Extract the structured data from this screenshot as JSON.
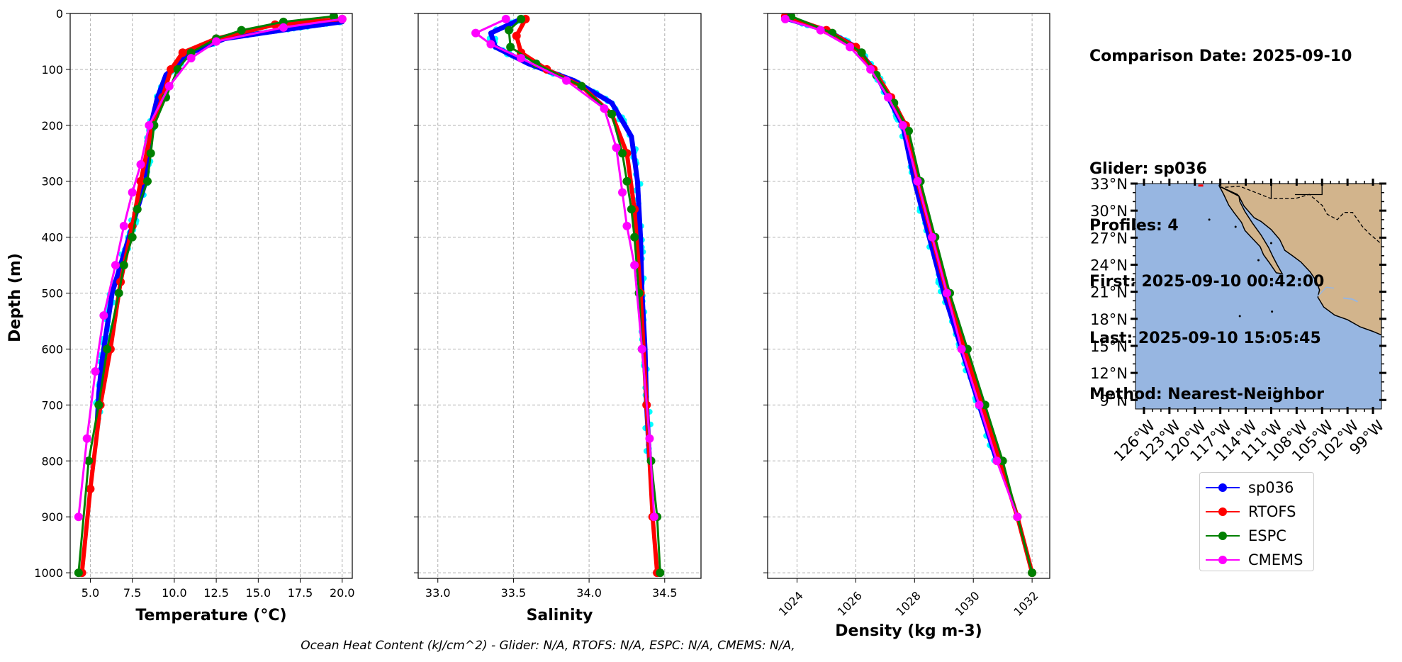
{
  "colors": {
    "sp036": "#0000ff",
    "sp036_raw": "#00ffff",
    "RTOFS": "#ff0000",
    "ESPC": "#008000",
    "CMEMS": "#ff00ff",
    "ocean": "#97b6e1",
    "land": "#d2b48c",
    "grid": "#b0b0b0"
  },
  "info": {
    "comparison_date": "Comparison Date: 2025-09-10",
    "glider": "Glider: sp036",
    "profiles": "Profiles: 4",
    "first": "First: 2025-09-10 00:42:00",
    "last": "Last: 2025-09-10 15:05:45",
    "method": "Method: Nearest-Neighbor"
  },
  "footer": "Ocean Heat Content (kJ/cm^2) - Glider: N/A,  RTOFS: N/A,  ESPC: N/A,  CMEMS: N/A,",
  "legend": [
    {
      "name": "sp036",
      "color_key": "sp036"
    },
    {
      "name": "RTOFS",
      "color_key": "RTOFS"
    },
    {
      "name": "ESPC",
      "color_key": "ESPC"
    },
    {
      "name": "CMEMS",
      "color_key": "CMEMS"
    }
  ],
  "map": {
    "lat_ticks": [
      "33°N",
      "30°N",
      "27°N",
      "24°N",
      "21°N",
      "18°N",
      "15°N",
      "12°N",
      "9°N"
    ],
    "lon_ticks": [
      "126°W",
      "123°W",
      "120°W",
      "117°W",
      "114°W",
      "111°W",
      "108°W",
      "105°W",
      "102°W",
      "99°W"
    ],
    "lat_values": [
      33,
      30,
      27,
      24,
      21,
      18,
      15,
      12,
      9
    ],
    "lon_values": [
      -126,
      -123,
      -120,
      -117,
      -114,
      -111,
      -108,
      -105,
      -102,
      -99
    ],
    "extent": {
      "lon": [
        -127,
        -98
      ],
      "lat": [
        8,
        33
      ]
    }
  },
  "chart_data": [
    {
      "type": "line",
      "id": "temperature",
      "xlabel": "Temperature (°C)",
      "ylabel": "Depth (m)",
      "xlim": [
        3.8,
        20.6
      ],
      "ylim": [
        1010,
        0
      ],
      "xticks": [
        5.0,
        7.5,
        10.0,
        12.5,
        15.0,
        17.5,
        20.0
      ],
      "xtick_labels": [
        "5.0",
        "7.5",
        "10.0",
        "12.5",
        "15.0",
        "17.5",
        "20.0"
      ],
      "yticks": [
        0,
        100,
        200,
        300,
        400,
        500,
        600,
        700,
        800,
        900,
        1000
      ],
      "ytick_labels": [
        "0",
        "100",
        "200",
        "300",
        "400",
        "500",
        "600",
        "700",
        "800",
        "900",
        "1000"
      ],
      "grid": true,
      "series": [
        {
          "name": "sp036",
          "x": [
            20.0,
            17.5,
            13.0,
            11.0,
            9.5,
            9.0,
            8.6,
            8.5,
            8.3,
            7.8,
            7.3,
            6.8,
            6.3,
            6.0,
            5.7,
            5.5,
            5.4
          ],
          "y": [
            15,
            25,
            45,
            70,
            110,
            150,
            200,
            250,
            300,
            350,
            400,
            450,
            500,
            560,
            620,
            680,
            740
          ]
        },
        {
          "name": "RTOFS",
          "x": [
            20.0,
            16.0,
            12.5,
            10.5,
            9.8,
            9.3,
            8.7,
            8.0,
            7.5,
            6.8,
            6.2,
            5.6,
            5.0,
            4.5
          ],
          "y": [
            10,
            20,
            45,
            70,
            100,
            150,
            200,
            300,
            380,
            480,
            600,
            700,
            850,
            1000
          ]
        },
        {
          "name": "ESPC",
          "x": [
            19.5,
            16.5,
            14.0,
            12.5,
            11.0,
            10.2,
            9.5,
            8.8,
            8.6,
            8.4,
            7.8,
            7.5,
            7.0,
            6.7,
            6.0,
            5.5,
            4.9,
            4.3
          ],
          "y": [
            5,
            15,
            30,
            45,
            70,
            100,
            150,
            200,
            250,
            300,
            350,
            400,
            450,
            500,
            600,
            700,
            800,
            1000
          ]
        },
        {
          "name": "CMEMS",
          "x": [
            20.0,
            16.5,
            12.5,
            11.0,
            9.7,
            8.5,
            8.0,
            7.5,
            7.0,
            6.5,
            5.8,
            5.3,
            4.8,
            4.3
          ],
          "y": [
            10,
            25,
            50,
            80,
            130,
            200,
            270,
            320,
            380,
            450,
            540,
            640,
            760,
            900
          ]
        }
      ]
    },
    {
      "type": "line",
      "id": "salinity",
      "xlabel": "Salinity",
      "xlim": [
        32.87,
        34.74
      ],
      "ylim": [
        1010,
        0
      ],
      "xticks": [
        33.0,
        33.5,
        34.0,
        34.5
      ],
      "xtick_labels": [
        "33.0",
        "33.5",
        "34.0",
        "34.5"
      ],
      "yticks": [
        0,
        100,
        200,
        300,
        400,
        500,
        600,
        700,
        800,
        900,
        1000
      ],
      "grid": true,
      "series": [
        {
          "name": "sp036",
          "x": [
            33.55,
            33.35,
            33.38,
            33.6,
            33.9,
            34.15,
            34.28,
            34.32,
            34.34,
            34.35,
            34.37,
            34.38,
            34.4
          ],
          "y": [
            10,
            35,
            60,
            90,
            120,
            160,
            220,
            300,
            400,
            500,
            600,
            700,
            800
          ]
        },
        {
          "name": "RTOFS",
          "x": [
            33.58,
            33.52,
            33.55,
            33.72,
            33.95,
            34.15,
            34.25,
            34.3,
            34.34,
            34.38,
            34.42,
            34.45
          ],
          "y": [
            10,
            40,
            70,
            100,
            130,
            180,
            250,
            350,
            500,
            700,
            900,
            1000
          ]
        },
        {
          "name": "ESPC",
          "x": [
            33.55,
            33.47,
            33.48,
            33.65,
            33.95,
            34.15,
            34.22,
            34.25,
            34.28,
            34.3,
            34.33,
            34.35,
            34.41,
            34.45,
            34.47
          ],
          "y": [
            10,
            30,
            60,
            90,
            130,
            180,
            250,
            300,
            350,
            400,
            500,
            600,
            800,
            900,
            1000
          ]
        },
        {
          "name": "CMEMS",
          "x": [
            33.45,
            33.25,
            33.35,
            33.55,
            33.85,
            34.1,
            34.18,
            34.22,
            34.25,
            34.3,
            34.35,
            34.4,
            34.43
          ],
          "y": [
            10,
            35,
            55,
            80,
            120,
            170,
            240,
            320,
            380,
            450,
            600,
            760,
            900
          ]
        }
      ]
    },
    {
      "type": "line",
      "id": "density",
      "xlabel": "Density (kg m-3)",
      "xlim": [
        1023.0,
        1032.6
      ],
      "ylim": [
        1010,
        0
      ],
      "xticks": [
        1024,
        1026,
        1028,
        1030,
        1032
      ],
      "xtick_labels": [
        "1024",
        "1026",
        "1028",
        "1030",
        "1032"
      ],
      "yticks": [
        0,
        100,
        200,
        300,
        400,
        500,
        600,
        700,
        800,
        900,
        1000
      ],
      "grid": true,
      "series": [
        {
          "name": "sp036",
          "x": [
            1023.7,
            1025.0,
            1026.0,
            1026.6,
            1027.1,
            1027.6,
            1028.0,
            1028.5,
            1029.0,
            1029.6,
            1030.2,
            1030.8
          ],
          "y": [
            10,
            30,
            60,
            100,
            150,
            200,
            300,
            400,
            500,
            600,
            700,
            800
          ]
        },
        {
          "name": "RTOFS",
          "x": [
            1023.6,
            1025.0,
            1026.0,
            1026.6,
            1027.2,
            1027.7,
            1028.1,
            1028.6,
            1029.1,
            1029.7,
            1030.3,
            1030.9,
            1031.5,
            1032.0
          ],
          "y": [
            5,
            30,
            60,
            100,
            150,
            200,
            300,
            400,
            500,
            600,
            700,
            800,
            900,
            1000
          ]
        },
        {
          "name": "ESPC",
          "x": [
            1023.8,
            1025.2,
            1026.2,
            1026.7,
            1027.3,
            1027.8,
            1028.2,
            1028.7,
            1029.2,
            1029.8,
            1030.4,
            1031.0,
            1031.5,
            1032.0
          ],
          "y": [
            5,
            35,
            70,
            110,
            160,
            210,
            300,
            400,
            500,
            600,
            700,
            800,
            900,
            1000
          ]
        },
        {
          "name": "CMEMS",
          "x": [
            1023.6,
            1024.8,
            1025.8,
            1026.5,
            1027.1,
            1027.6,
            1028.1,
            1028.6,
            1029.1,
            1029.6,
            1030.2,
            1030.8,
            1031.5
          ],
          "y": [
            10,
            30,
            60,
            100,
            150,
            200,
            300,
            400,
            500,
            600,
            700,
            800,
            900
          ]
        }
      ]
    }
  ]
}
